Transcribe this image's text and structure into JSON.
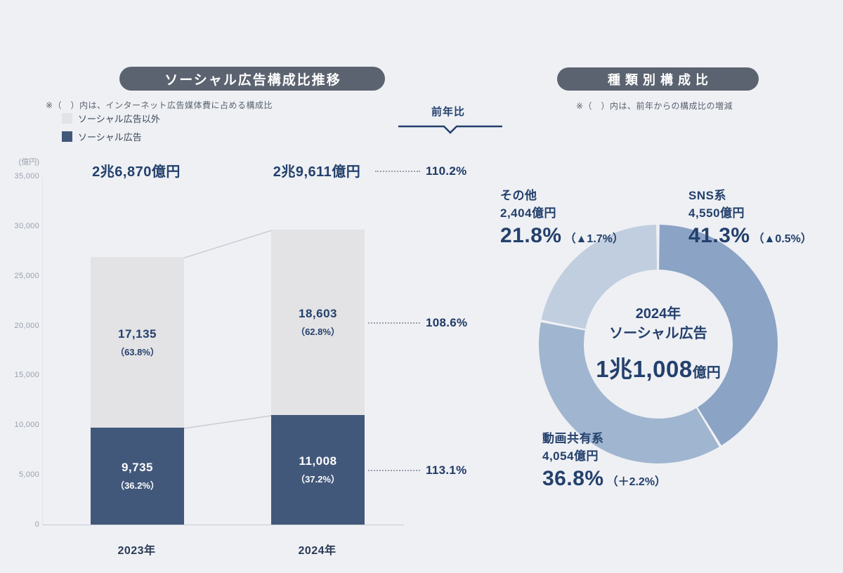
{
  "page": {
    "background": "#eef0f4",
    "accent_navy": "#24406c",
    "pill_color": "#5b6370"
  },
  "left_panel": {
    "title": "ソーシャル広告構成比推移",
    "note": "※（　）内は、インターネット広告媒体費に占める構成比",
    "yoy_label": "前年比",
    "axis_unit": "(億円)",
    "legend": [
      {
        "label": "ソーシャル広告以外",
        "color": "#e3e3e5"
      },
      {
        "label": "ソーシャル広告",
        "color": "#42587b"
      }
    ]
  },
  "right_panel": {
    "title": "種類別構成比",
    "note": "※（　）内は、前年からの構成比の増減"
  },
  "chart_data": [
    {
      "type": "bar",
      "stacked": true,
      "title": "ソーシャル広告構成比推移",
      "categories": [
        "2023年",
        "2024年"
      ],
      "series": [
        {
          "name": "ソーシャル広告以外",
          "color": "#e3e3e5",
          "values": [
            17135,
            18603
          ],
          "values_display": [
            "17,135",
            "18,603"
          ],
          "share_labels": [
            "（63.8%）",
            "（62.8%）"
          ]
        },
        {
          "name": "ソーシャル広告",
          "color": "#42587b",
          "values": [
            9735,
            11008
          ],
          "values_display": [
            "9,735",
            "11,008"
          ],
          "share_labels": [
            "（36.2%）",
            "（37.2%）"
          ]
        }
      ],
      "totals": [
        26870,
        29611
      ],
      "totals_display": [
        "2兆6,870億円",
        "2兆9,611億円"
      ],
      "yoy": {
        "total": "110.2%",
        "non_social": "108.6%",
        "social": "113.1%"
      },
      "ylabel": "(億円)",
      "ylim": [
        0,
        35000
      ],
      "yticks": [
        0,
        5000,
        10000,
        15000,
        20000,
        25000,
        30000,
        35000
      ],
      "grid": false,
      "legend_position": "top-left"
    },
    {
      "type": "pie",
      "subtype": "donut",
      "title": "種類別構成比",
      "center": {
        "line1": "2024年",
        "line2": "ソーシャル広告",
        "value": "1兆1,008",
        "unit": "億円"
      },
      "slices": [
        {
          "key": "sns",
          "name": "SNS系",
          "amount": "4,550億円",
          "percent": 41.3,
          "percent_label": "41.3%",
          "change": "（▲0.5%）",
          "color": "#8ba3c4"
        },
        {
          "key": "video-sharing",
          "name": "動画共有系",
          "amount": "4,054億円",
          "percent": 36.8,
          "percent_label": "36.8%",
          "change": "（＋2.2%）",
          "color": "#a0b5cf"
        },
        {
          "key": "other",
          "name": "その他",
          "amount": "2,404億円",
          "percent": 21.8,
          "percent_label": "21.8%",
          "change": "（▲1.7%）",
          "color": "#c1cedf"
        }
      ],
      "start_angle_deg": -90,
      "direction": "clockwise"
    }
  ]
}
